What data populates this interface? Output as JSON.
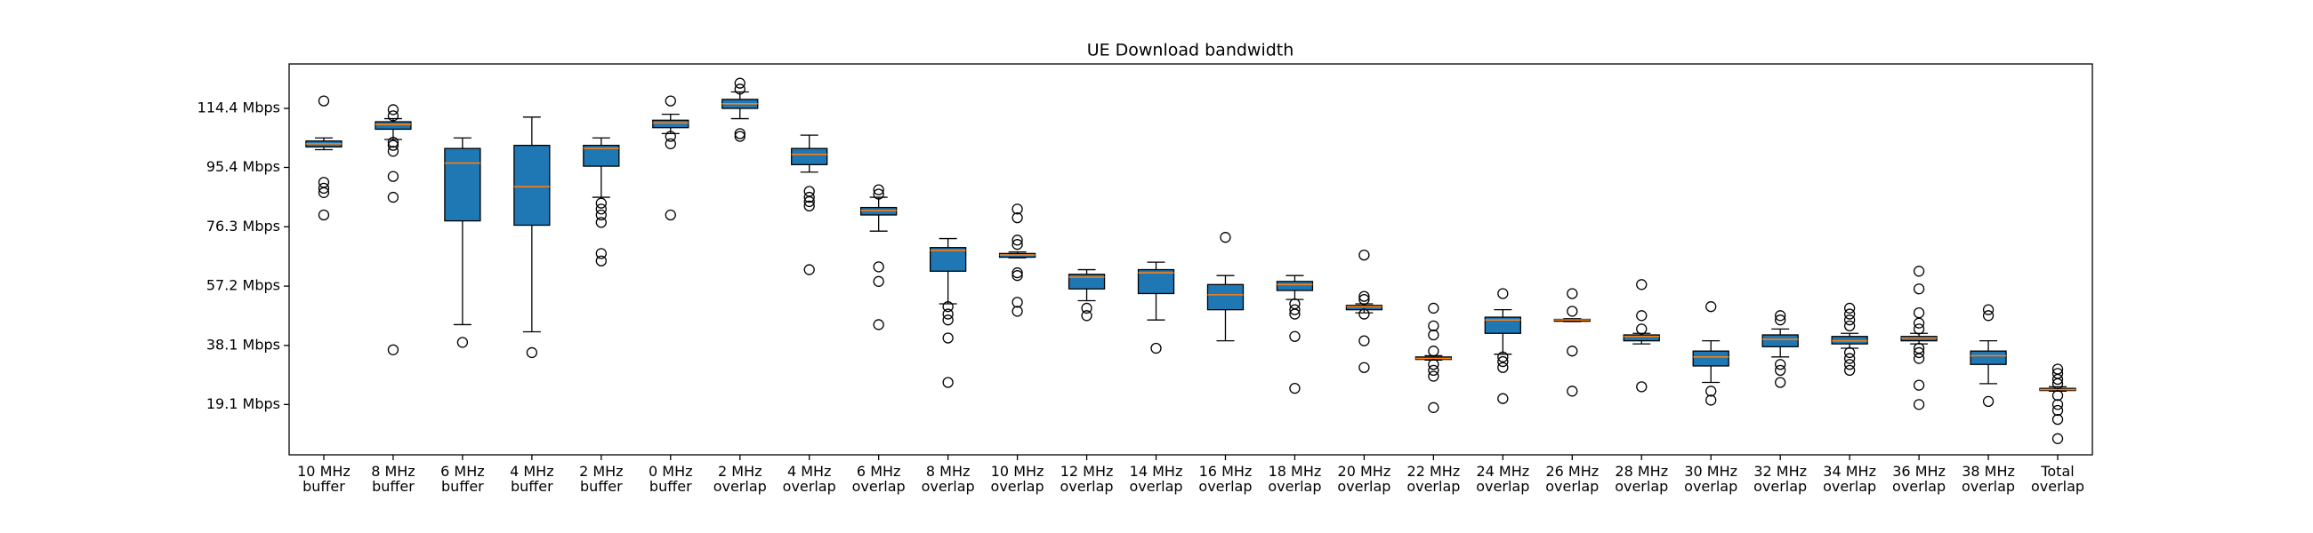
{
  "chart_data": {
    "type": "box",
    "title": "UE Download bandwidth",
    "color": "#1f77b4",
    "median_color": "#ff7f0e",
    "categories": [
      "10 MHz\nbuffer",
      "8 MHz\nbuffer",
      "6 MHz\nbuffer",
      "4 MHz\nbuffer",
      "2 MHz\nbuffer",
      "0 MHz\nbuffer",
      "2 MHz\noverlap",
      "4 MHz\noverlap",
      "6 MHz\noverlap",
      "8 MHz\noverlap",
      "10 MHz\noverlap",
      "12 MHz\noverlap",
      "14 MHz\noverlap",
      "16 MHz\noverlap",
      "18 MHz\noverlap",
      "20 MHz\noverlap",
      "22 MHz\noverlap",
      "24 MHz\noverlap",
      "26 MHz\noverlap",
      "28 MHz\noverlap",
      "30 MHz\noverlap",
      "32 MHz\noverlap",
      "34 MHz\noverlap",
      "36 MHz\noverlap",
      "38 MHz\noverlap",
      "Total\noverlap"
    ],
    "boxes": [
      {
        "whislo": 101.1,
        "q1": 102.0,
        "med": 103.0,
        "q3": 103.9,
        "whishi": 104.9,
        "fliers": [
          116.8,
          90.6,
          88.7,
          87.3,
          80.1
        ]
      },
      {
        "whislo": 104.4,
        "q1": 107.7,
        "med": 109.2,
        "q3": 110.1,
        "whishi": 111.1,
        "fliers": [
          114.0,
          112.0,
          103.5,
          102.5,
          100.6,
          92.5,
          85.8,
          36.7
        ]
      },
      {
        "whislo": 44.8,
        "q1": 78.2,
        "med": 96.8,
        "q3": 101.5,
        "whishi": 104.9,
        "fliers": [
          39.1
        ]
      },
      {
        "whislo": 42.5,
        "q1": 76.8,
        "med": 89.2,
        "q3": 102.5,
        "whishi": 111.6,
        "fliers": [
          35.8
        ]
      },
      {
        "whislo": 85.8,
        "q1": 95.8,
        "med": 101.5,
        "q3": 102.5,
        "whishi": 104.9,
        "fliers": [
          83.9,
          82.0,
          80.1,
          77.7,
          67.7,
          65.3
        ]
      },
      {
        "whislo": 106.3,
        "q1": 108.2,
        "med": 109.7,
        "q3": 110.6,
        "whishi": 112.5,
        "fliers": [
          116.8,
          105.4,
          103.0,
          80.1
        ]
      },
      {
        "whislo": 111.1,
        "q1": 114.4,
        "med": 115.9,
        "q3": 117.3,
        "whishi": 119.7,
        "fliers": [
          122.5,
          120.6,
          106.3,
          105.4
        ]
      },
      {
        "whislo": 93.9,
        "q1": 96.3,
        "med": 99.6,
        "q3": 101.5,
        "whishi": 105.8,
        "fliers": [
          87.7,
          85.8,
          84.4,
          83.0,
          62.5
        ]
      },
      {
        "whislo": 74.9,
        "q1": 80.1,
        "med": 81.5,
        "q3": 82.5,
        "whishi": 85.8,
        "fliers": [
          88.2,
          86.8,
          63.4,
          58.7,
          44.8
        ]
      },
      {
        "whislo": 51.5,
        "q1": 62.0,
        "med": 68.7,
        "q3": 69.6,
        "whishi": 72.5,
        "fliers": [
          50.6,
          48.2,
          46.3,
          40.5,
          26.2
        ]
      },
      {
        "whislo": 66.3,
        "q1": 66.5,
        "med": 67.2,
        "q3": 67.7,
        "whishi": 68.2,
        "fliers": [
          82.0,
          79.2,
          72.0,
          70.6,
          61.5,
          60.6,
          52.0,
          49.1
        ]
      },
      {
        "whislo": 52.5,
        "q1": 56.3,
        "med": 60.1,
        "q3": 61.0,
        "whishi": 62.5,
        "fliers": [
          50.1,
          47.7
        ]
      },
      {
        "whislo": 46.3,
        "q1": 54.8,
        "med": 61.5,
        "q3": 62.5,
        "whishi": 64.9,
        "fliers": [
          37.2
        ]
      },
      {
        "whislo": 39.6,
        "q1": 49.6,
        "med": 54.4,
        "q3": 57.7,
        "whishi": 60.6,
        "fliers": [
          72.9
        ]
      },
      {
        "whislo": 52.9,
        "q1": 55.8,
        "med": 57.7,
        "q3": 58.7,
        "whishi": 60.6,
        "fliers": [
          51.5,
          49.6,
          48.2,
          41.0,
          24.3
        ]
      },
      {
        "whislo": 48.6,
        "q1": 49.6,
        "med": 50.6,
        "q3": 51.0,
        "whishi": 51.5,
        "fliers": [
          67.2,
          53.9,
          52.9,
          48.2,
          39.6,
          31.0
        ]
      },
      {
        "whislo": 33.4,
        "q1": 33.6,
        "med": 33.9,
        "q3": 34.4,
        "whishi": 34.8,
        "fliers": [
          50.1,
          44.4,
          41.5,
          36.3,
          32.0,
          30.1,
          28.2,
          18.1
        ]
      },
      {
        "whislo": 35.3,
        "q1": 42.0,
        "med": 46.3,
        "q3": 47.2,
        "whishi": 49.6,
        "fliers": [
          54.8,
          34.4,
          32.9,
          31.0,
          21.0
        ]
      },
      {
        "whislo": 45.8,
        "q1": 45.9,
        "med": 46.3,
        "q3": 46.5,
        "whishi": 46.7,
        "fliers": [
          54.8,
          49.1,
          36.3,
          23.4
        ]
      },
      {
        "whislo": 38.6,
        "q1": 39.6,
        "med": 41.0,
        "q3": 41.5,
        "whishi": 42.0,
        "fliers": [
          57.7,
          47.7,
          43.4,
          24.8
        ]
      },
      {
        "whislo": 26.2,
        "q1": 31.5,
        "med": 34.4,
        "q3": 36.3,
        "whishi": 39.6,
        "fliers": [
          50.6,
          23.4,
          20.5
        ]
      },
      {
        "whislo": 34.4,
        "q1": 37.7,
        "med": 40.1,
        "q3": 41.5,
        "whishi": 43.4,
        "fliers": [
          47.7,
          46.3,
          32.0,
          30.1,
          26.2
        ]
      },
      {
        "whislo": 37.2,
        "q1": 38.6,
        "med": 39.6,
        "q3": 41.0,
        "whishi": 42.0,
        "fliers": [
          50.1,
          48.2,
          46.3,
          44.4,
          35.8,
          33.9,
          32.0,
          30.1
        ]
      },
      {
        "whislo": 38.6,
        "q1": 39.6,
        "med": 40.5,
        "q3": 41.0,
        "whishi": 42.0,
        "fliers": [
          62.0,
          56.3,
          48.6,
          45.3,
          43.4,
          37.2,
          35.8,
          33.9,
          25.3,
          19.1
        ]
      },
      {
        "whislo": 25.8,
        "q1": 32.0,
        "med": 34.8,
        "q3": 36.3,
        "whishi": 39.6,
        "fliers": [
          49.6,
          47.7,
          20.1
        ]
      },
      {
        "whislo": 23.4,
        "q1": 23.6,
        "med": 23.9,
        "q3": 24.3,
        "whishi": 24.8,
        "fliers": [
          30.5,
          29.1,
          27.2,
          25.8,
          22.0,
          19.1,
          17.2,
          14.3,
          8.1
        ]
      }
    ],
    "ylim": [
      2.9,
      128.7
    ],
    "yticks": [
      {
        "value": 19.1,
        "label": "19.1 Mbps"
      },
      {
        "value": 38.1,
        "label": "38.1 Mbps"
      },
      {
        "value": 57.2,
        "label": "57.2 Mbps"
      },
      {
        "value": 76.3,
        "label": "76.3 Mbps"
      },
      {
        "value": 95.4,
        "label": "95.4 Mbps"
      },
      {
        "value": 114.4,
        "label": "114.4 Mbps"
      }
    ]
  }
}
